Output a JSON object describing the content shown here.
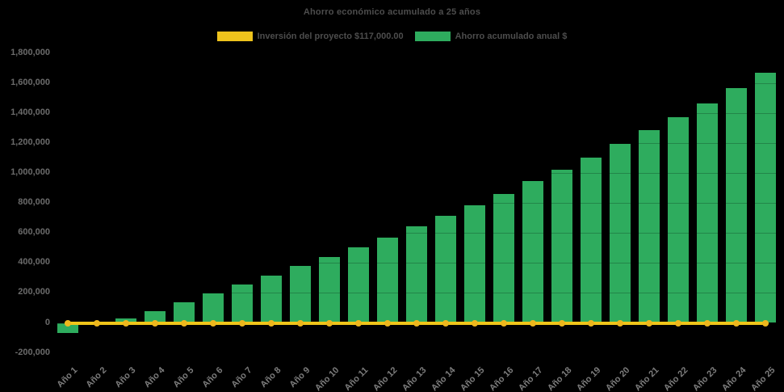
{
  "title": "Ahorro económico acumulado a 25 años",
  "legend": {
    "items": [
      {
        "label": "Inversión del proyecto $117,000.00",
        "color": "#eec31c"
      },
      {
        "label": "Ahorro acumulado anual $",
        "color": "#2eac5e"
      }
    ]
  },
  "colors": {
    "background": "#000000",
    "bar_green": "#2eac5e",
    "line_yellow": "#f0c51a",
    "marker_yellow": "#edb71d",
    "title_text": "#4d4d4d",
    "axis_text": "#6b6b6b",
    "xaxis_text": "#7d7d7d"
  },
  "chart_data": {
    "type": "bar",
    "title": "Ahorro económico acumulado a 25 años",
    "categories": [
      "Año 1",
      "Año 2",
      "Año 3",
      "Año 4",
      "Año 5",
      "Año 6",
      "Año 7",
      "Año 8",
      "Año 9",
      "Año 10",
      "Año 11",
      "Año 12",
      "Año 13",
      "Año 14",
      "Año 15",
      "Año 16",
      "Año 17",
      "Año 18",
      "Año 19",
      "Año 20",
      "Año 21",
      "Año 22",
      "Año 23",
      "Año 24",
      "Año 25"
    ],
    "series": [
      {
        "name": "Ahorro acumulado anual $",
        "type": "bar",
        "color": "#2eac5e",
        "values": [
          -70000,
          -15000,
          30000,
          80000,
          137000,
          196000,
          255000,
          314000,
          380000,
          440000,
          505000,
          572000,
          645000,
          715000,
          788000,
          863000,
          948000,
          1022000,
          1105000,
          1196000,
          1288000,
          1375000,
          1468000,
          1568000,
          1670000
        ]
      },
      {
        "name": "Inversión del proyecto $117,000.00",
        "type": "line",
        "color": "#f0c51a",
        "values": [
          0,
          0,
          0,
          0,
          0,
          0,
          0,
          0,
          0,
          0,
          0,
          0,
          0,
          0,
          0,
          0,
          0,
          0,
          0,
          0,
          0,
          0,
          0,
          0,
          0
        ]
      }
    ],
    "xlabel": "",
    "ylabel": "",
    "ylim": [
      -200000,
      1800000
    ],
    "ytick_step": 200000,
    "yticklabels": [
      "1,800,000",
      "1,600,000",
      "1,400,000",
      "1,200,000",
      "1,000,000",
      "800,000",
      "600,000",
      "400,000",
      "200,000",
      "0",
      "-200,000"
    ],
    "grid": "subtle horizontal gridlines over bars",
    "legend_position": "top-center"
  }
}
